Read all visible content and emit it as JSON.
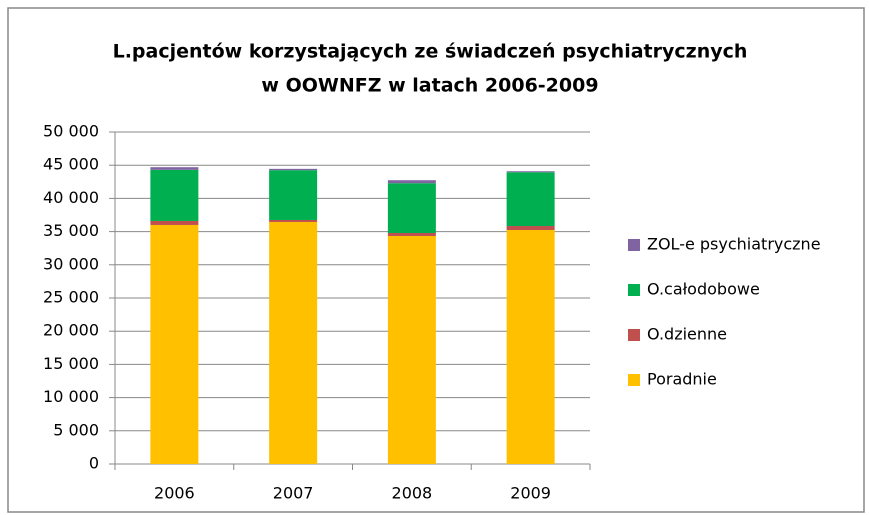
{
  "chart_data": {
    "type": "stacked-bar",
    "title": [
      "L.pacjentów korzystających ze świadczeń psychiatrycznych",
      "w OOWNFZ w latach 2006-2009"
    ],
    "categories": [
      "2006",
      "2007",
      "2008",
      "2009"
    ],
    "series": [
      {
        "name": "Poradnie",
        "color": "#ffc000",
        "values": [
          36000,
          36450,
          34340,
          35240
        ]
      },
      {
        "name": "O.dzienne",
        "color": "#c0504d",
        "values": [
          600,
          300,
          450,
          600
        ]
      },
      {
        "name": "O.całodobowe",
        "color": "#00b050",
        "values": [
          7700,
          7500,
          7500,
          8100
        ]
      },
      {
        "name": "ZOL-e psychiatryczne",
        "color": "#8064a2",
        "values": [
          400,
          200,
          450,
          150
        ]
      }
    ],
    "ylim": [
      0,
      50000
    ],
    "yticks": [
      0,
      {
        "value": 5000,
        "label": "5 000"
      },
      {
        "value": 10000,
        "label": "10 000"
      },
      {
        "value": 15000,
        "label": "15 000"
      },
      {
        "value": 20000,
        "label": "20 000"
      },
      {
        "value": 25000,
        "label": "25 000"
      },
      {
        "value": 30000,
        "label": "30 000"
      },
      {
        "value": 35000,
        "label": "35 000"
      },
      {
        "value": 40000,
        "label": "40 000"
      },
      {
        "value": 45000,
        "label": "45 000"
      },
      {
        "value": 50000,
        "label": "50 000"
      }
    ],
    "grid": true,
    "legend": "right"
  }
}
